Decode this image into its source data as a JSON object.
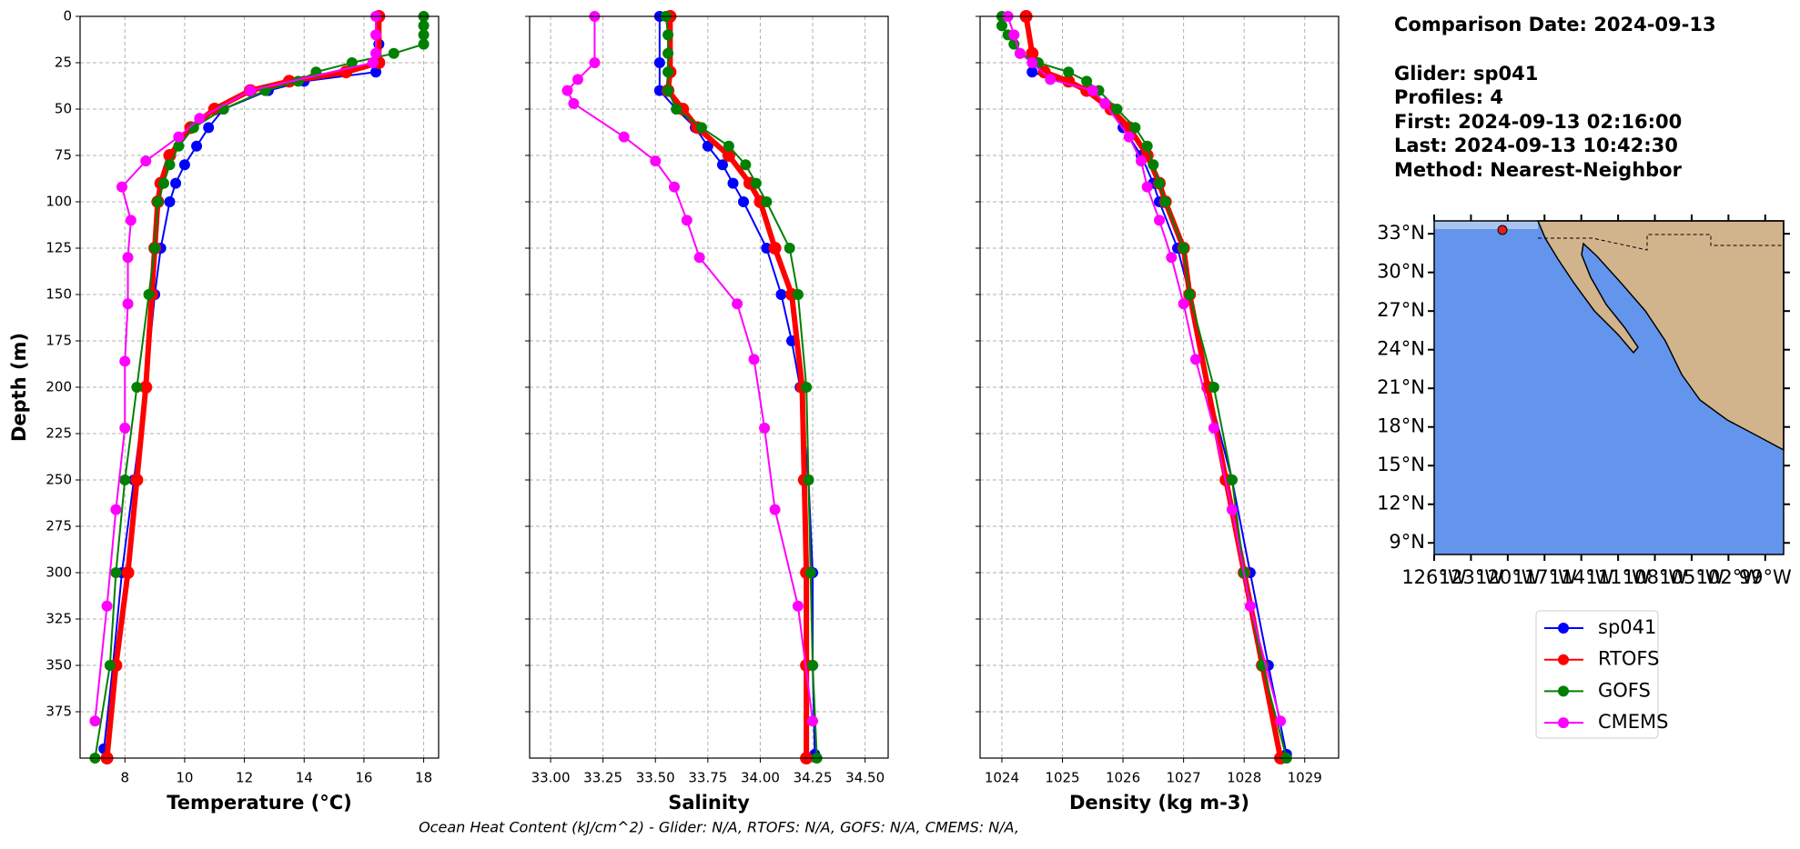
{
  "chart_data": [
    {
      "type": "line",
      "xlabel": "Temperature (°C)",
      "ylabel": "Depth (m)",
      "xlim": [
        6.5,
        18.5
      ],
      "xticks": [
        8,
        10,
        12,
        14,
        16,
        18
      ],
      "ylim": [
        400,
        0
      ],
      "yticks": [
        0,
        25,
        50,
        75,
        100,
        125,
        150,
        175,
        200,
        225,
        250,
        275,
        300,
        325,
        350,
        375
      ],
      "grid": true,
      "series": [
        {
          "name": "sp041",
          "color": "#0000ff",
          "linewidth": 2,
          "x": [
            16.5,
            16.5,
            16.4,
            14.0,
            12.8,
            11.3,
            10.8,
            10.4,
            10.0,
            9.7,
            9.5,
            9.2,
            9.0,
            8.7,
            8.3,
            7.9,
            7.6,
            7.3
          ],
          "y": [
            0,
            15,
            30,
            35,
            40,
            50,
            60,
            70,
            80,
            90,
            100,
            125,
            150,
            200,
            250,
            300,
            350,
            395
          ]
        },
        {
          "name": "RTOFS",
          "color": "#ff0000",
          "linewidth": 6,
          "x": [
            16.5,
            16.5,
            15.4,
            13.5,
            12.2,
            11.0,
            10.2,
            9.5,
            9.2,
            9.1,
            9.0,
            8.9,
            8.7,
            8.4,
            8.1,
            7.7,
            7.4
          ],
          "y": [
            0,
            25,
            30,
            35,
            40,
            50,
            60,
            75,
            90,
            100,
            125,
            150,
            200,
            250,
            300,
            350,
            400
          ]
        },
        {
          "name": "GOFS",
          "color": "#008000",
          "linewidth": 2,
          "x": [
            18.0,
            18.0,
            18.0,
            18.0,
            17.0,
            15.6,
            14.4,
            13.8,
            12.7,
            11.3,
            10.3,
            9.8,
            9.5,
            9.3,
            9.1,
            9.0,
            8.8,
            8.4,
            8.0,
            7.7,
            7.5,
            7.0
          ],
          "y": [
            0,
            5,
            10,
            15,
            20,
            25,
            30,
            35,
            40,
            50,
            60,
            70,
            80,
            90,
            100,
            125,
            150,
            200,
            250,
            300,
            350,
            400
          ]
        },
        {
          "name": "CMEMS",
          "color": "#ff00ff",
          "linewidth": 2,
          "x": [
            16.4,
            16.4,
            16.4,
            16.3,
            12.2,
            10.5,
            9.8,
            8.7,
            7.9,
            8.2,
            8.1,
            8.1,
            8.0,
            8.0,
            7.7,
            7.4,
            7.0
          ],
          "y": [
            0,
            10,
            20,
            25,
            40,
            55,
            65,
            78,
            92,
            110,
            130,
            155,
            186,
            222,
            266,
            318,
            380
          ]
        }
      ]
    },
    {
      "type": "line",
      "xlabel": "Salinity",
      "xlim": [
        32.9,
        34.61
      ],
      "xticks": [
        {
          "value": 33.0,
          "label": "33.00"
        },
        {
          "value": 33.25,
          "label": "33.25"
        },
        {
          "value": 33.5,
          "label": "33.50"
        },
        {
          "value": 33.75,
          "label": "33.75"
        },
        {
          "value": 34.0,
          "label": "34.00"
        },
        {
          "value": 34.25,
          "label": "34.25"
        },
        {
          "value": 34.5,
          "label": "34.50"
        }
      ],
      "ylim": [
        400,
        0
      ],
      "yticks": [
        0,
        25,
        50,
        75,
        100,
        125,
        150,
        175,
        200,
        225,
        250,
        275,
        300,
        325,
        350,
        375
      ],
      "grid": true,
      "series": [
        {
          "color": "#0000ff",
          "linewidth": 2,
          "x": [
            33.52,
            33.52,
            33.52,
            33.6,
            33.69,
            33.75,
            33.82,
            33.87,
            33.92,
            34.03,
            34.1,
            34.15,
            34.19,
            34.23,
            34.25,
            34.25,
            34.26
          ],
          "y": [
            0,
            25,
            40,
            50,
            60,
            70,
            80,
            90,
            100,
            125,
            150,
            175,
            200,
            250,
            300,
            350,
            398
          ]
        },
        {
          "color": "#ff0000",
          "linewidth": 6,
          "x": [
            33.57,
            33.57,
            33.56,
            33.63,
            33.7,
            33.85,
            33.95,
            34.0,
            34.07,
            34.15,
            34.2,
            34.21,
            34.22,
            34.22,
            34.22
          ],
          "y": [
            0,
            30,
            40,
            50,
            60,
            75,
            90,
            100,
            125,
            150,
            200,
            250,
            300,
            350,
            400
          ]
        },
        {
          "color": "#008000",
          "linewidth": 2,
          "x": [
            33.55,
            33.56,
            33.56,
            33.56,
            33.56,
            33.6,
            33.72,
            33.85,
            33.93,
            33.98,
            34.03,
            34.14,
            34.18,
            34.22,
            34.23,
            34.24,
            34.25,
            34.27
          ],
          "y": [
            0,
            10,
            20,
            30,
            40,
            50,
            60,
            70,
            80,
            90,
            100,
            125,
            150,
            200,
            250,
            300,
            350,
            400
          ]
        },
        {
          "color": "#ff00ff",
          "linewidth": 2,
          "x": [
            33.21,
            33.21,
            33.13,
            33.08,
            33.11,
            33.35,
            33.5,
            33.59,
            33.65,
            33.71,
            33.89,
            33.97,
            34.02,
            34.07,
            34.18,
            34.25
          ],
          "y": [
            0,
            25,
            34,
            40,
            47,
            65,
            78,
            92,
            110,
            130,
            155,
            185,
            222,
            266,
            318,
            380
          ]
        }
      ]
    },
    {
      "type": "line",
      "xlabel": "Density (kg m-3)",
      "xlim": [
        1023.64,
        1029.56
      ],
      "xticks": [
        1024,
        1025,
        1026,
        1027,
        1028,
        1029
      ],
      "ylim": [
        400,
        0
      ],
      "yticks": [
        0,
        25,
        50,
        75,
        100,
        125,
        150,
        175,
        200,
        225,
        250,
        275,
        300,
        325,
        350,
        375
      ],
      "grid": true,
      "series": [
        {
          "color": "#0000ff",
          "linewidth": 2,
          "x": [
            1024.4,
            1024.5,
            1025.4,
            1025.8,
            1026.0,
            1026.3,
            1026.5,
            1026.6,
            1026.9,
            1027.1,
            1027.4,
            1027.8,
            1028.1,
            1028.4,
            1028.7
          ],
          "y": [
            0,
            30,
            40,
            50,
            60,
            75,
            90,
            100,
            125,
            150,
            200,
            250,
            300,
            350,
            398
          ]
        },
        {
          "color": "#ff0000",
          "linewidth": 6,
          "x": [
            1024.4,
            1024.5,
            1024.7,
            1025.1,
            1025.4,
            1025.8,
            1026.1,
            1026.4,
            1026.6,
            1026.7,
            1027.0,
            1027.1,
            1027.4,
            1027.7,
            1028.0,
            1028.3,
            1028.6
          ],
          "y": [
            0,
            20,
            30,
            35,
            40,
            50,
            60,
            75,
            90,
            100,
            125,
            150,
            200,
            250,
            300,
            350,
            400
          ]
        },
        {
          "color": "#008000",
          "linewidth": 2,
          "x": [
            1024.0,
            1024.0,
            1024.1,
            1024.2,
            1024.3,
            1024.6,
            1025.1,
            1025.4,
            1025.6,
            1025.9,
            1026.2,
            1026.4,
            1026.5,
            1026.6,
            1026.7,
            1027.0,
            1027.1,
            1027.5,
            1027.8,
            1028.0,
            1028.3,
            1028.7
          ],
          "y": [
            0,
            5,
            10,
            15,
            20,
            25,
            30,
            35,
            40,
            50,
            60,
            70,
            80,
            90,
            100,
            125,
            150,
            200,
            250,
            300,
            350,
            400
          ]
        },
        {
          "color": "#ff00ff",
          "linewidth": 2,
          "x": [
            1024.1,
            1024.2,
            1024.3,
            1024.5,
            1024.8,
            1025.5,
            1025.7,
            1026.1,
            1026.3,
            1026.4,
            1026.6,
            1026.8,
            1027.0,
            1027.2,
            1027.5,
            1027.8,
            1028.1,
            1028.6
          ],
          "y": [
            0,
            10,
            20,
            25,
            34,
            40,
            47,
            65,
            78,
            92,
            110,
            130,
            155,
            185,
            222,
            266,
            318,
            380
          ]
        }
      ]
    }
  ],
  "info": [
    "Comparison Date: 2024-09-13",
    "Glider: sp041",
    "Profiles: 4",
    "First: 2024-09-13 02:16:00",
    "Last: 2024-09-13 10:42:30",
    "Method: Nearest-Neighbor"
  ],
  "map": {
    "xlim": [
      -126,
      -97.5
    ],
    "ylim": [
      8.1,
      34.0
    ],
    "lat_ticks": [
      {
        "value": 33,
        "label": "33°N"
      },
      {
        "value": 30,
        "label": "30°N"
      },
      {
        "value": 27,
        "label": "27°N"
      },
      {
        "value": 24,
        "label": "24°N"
      },
      {
        "value": 21,
        "label": "21°N"
      },
      {
        "value": 18,
        "label": "18°N"
      },
      {
        "value": 15,
        "label": "15°N"
      },
      {
        "value": 12,
        "label": "12°N"
      },
      {
        "value": 9,
        "label": "9°N"
      }
    ],
    "lon_ticks": [
      {
        "value": -126,
        "label": "126°W"
      },
      {
        "value": -123,
        "label": "123°W"
      },
      {
        "value": -120,
        "label": "120°W"
      },
      {
        "value": -117,
        "label": "117°W"
      },
      {
        "value": -114,
        "label": "114°W"
      },
      {
        "value": -111,
        "label": "111°W"
      },
      {
        "value": -108,
        "label": "108°W"
      },
      {
        "value": -105,
        "label": "105°W"
      },
      {
        "value": -102,
        "label": "102°W"
      },
      {
        "value": -99,
        "label": "99°W"
      }
    ]
  },
  "footer": "Ocean Heat Content (kJ/cm^2) - Glider: N/A,  RTOFS: N/A,  GOFS: N/A,  CMEMS: N/A,"
}
